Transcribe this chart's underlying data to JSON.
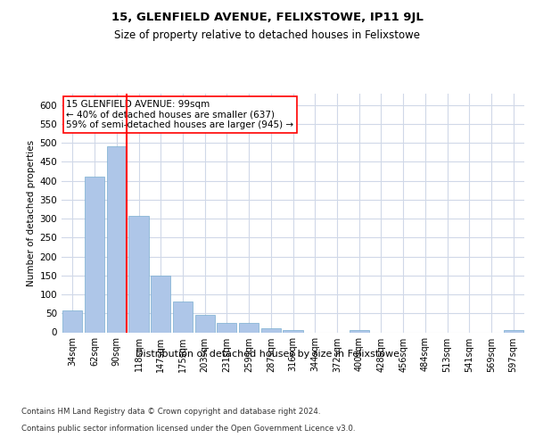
{
  "title": "15, GLENFIELD AVENUE, FELIXSTOWE, IP11 9JL",
  "subtitle": "Size of property relative to detached houses in Felixstowe",
  "xlabel": "Distribution of detached houses by size in Felixstowe",
  "ylabel": "Number of detached properties",
  "footnote1": "Contains HM Land Registry data © Crown copyright and database right 2024.",
  "footnote2": "Contains public sector information licensed under the Open Government Licence v3.0.",
  "annotation_line1": "15 GLENFIELD AVENUE: 99sqm",
  "annotation_line2": "← 40% of detached houses are smaller (637)",
  "annotation_line3": "59% of semi-detached houses are larger (945) →",
  "bar_labels": [
    "34sqm",
    "62sqm",
    "90sqm",
    "118sqm",
    "147sqm",
    "175sqm",
    "203sqm",
    "231sqm",
    "259sqm",
    "287sqm",
    "316sqm",
    "344sqm",
    "372sqm",
    "400sqm",
    "428sqm",
    "456sqm",
    "484sqm",
    "513sqm",
    "541sqm",
    "569sqm",
    "597sqm"
  ],
  "bar_values": [
    58,
    412,
    492,
    307,
    150,
    82,
    45,
    25,
    25,
    10,
    7,
    0,
    0,
    5,
    0,
    0,
    0,
    0,
    0,
    0,
    5
  ],
  "bar_color": "#aec6e8",
  "bar_edge_color": "#7aaed0",
  "background_color": "#ffffff",
  "grid_color": "#d0d8e8",
  "ylim": [
    0,
    630
  ],
  "yticks": [
    0,
    50,
    100,
    150,
    200,
    250,
    300,
    350,
    400,
    450,
    500,
    550,
    600
  ]
}
